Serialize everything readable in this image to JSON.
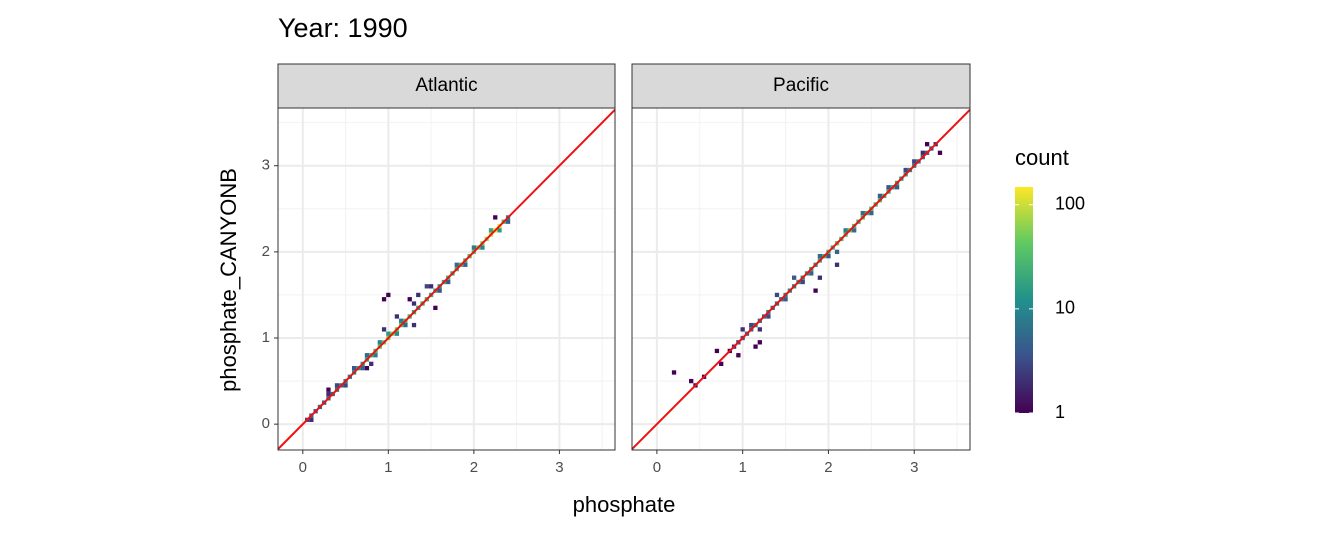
{
  "chart_data": {
    "type": "bin2d",
    "title": "Year: 1990",
    "x_label": "phosphate",
    "y_label": "phosphate_CANYONB",
    "xlim": [
      -0.29,
      3.65
    ],
    "ylim": [
      -0.3,
      3.67
    ],
    "xticks": [
      0,
      1,
      2,
      3
    ],
    "yticks": [
      0,
      1,
      2,
      3
    ],
    "minor_ticks": [
      0.5,
      1.5,
      2.5,
      3.5
    ],
    "grid": true,
    "binwidth": 0.05,
    "reference_line": {
      "slope": 1,
      "intercept": 0,
      "color": "#ee1111"
    },
    "colorbar": {
      "title": "count",
      "colormap": "viridis",
      "log": true,
      "clim": [
        1,
        148
      ],
      "ticks": [
        1,
        10,
        100
      ]
    },
    "facets": [
      {
        "name": "Atlantic",
        "cells": [
          [
            0.05,
            0.05,
            3
          ],
          [
            0.1,
            0.1,
            5
          ],
          [
            0.15,
            0.15,
            4
          ],
          [
            0.2,
            0.2,
            6
          ],
          [
            0.25,
            0.25,
            4
          ],
          [
            0.3,
            0.3,
            5
          ],
          [
            0.35,
            0.35,
            6
          ],
          [
            0.4,
            0.4,
            8
          ],
          [
            0.45,
            0.45,
            6
          ],
          [
            0.5,
            0.5,
            10
          ],
          [
            0.55,
            0.55,
            8
          ],
          [
            0.6,
            0.6,
            12
          ],
          [
            0.65,
            0.65,
            15
          ],
          [
            0.7,
            0.7,
            14
          ],
          [
            0.75,
            0.75,
            20
          ],
          [
            0.8,
            0.8,
            25
          ],
          [
            0.85,
            0.85,
            30
          ],
          [
            0.9,
            0.9,
            40
          ],
          [
            0.95,
            0.95,
            45
          ],
          [
            1.0,
            1.0,
            60
          ],
          [
            1.05,
            1.05,
            70
          ],
          [
            1.1,
            1.1,
            50
          ],
          [
            1.15,
            1.15,
            40
          ],
          [
            1.2,
            1.2,
            30
          ],
          [
            1.25,
            1.25,
            25
          ],
          [
            1.3,
            1.3,
            20
          ],
          [
            1.35,
            1.35,
            18
          ],
          [
            1.4,
            1.4,
            22
          ],
          [
            1.45,
            1.45,
            25
          ],
          [
            1.5,
            1.5,
            20
          ],
          [
            1.55,
            1.55,
            18
          ],
          [
            1.6,
            1.6,
            15
          ],
          [
            1.65,
            1.65,
            20
          ],
          [
            1.7,
            1.7,
            25
          ],
          [
            1.75,
            1.75,
            20
          ],
          [
            1.8,
            1.8,
            25
          ],
          [
            1.85,
            1.85,
            30
          ],
          [
            1.9,
            1.9,
            30
          ],
          [
            1.95,
            1.95,
            35
          ],
          [
            2.0,
            2.0,
            40
          ],
          [
            2.05,
            2.05,
            50
          ],
          [
            2.1,
            2.1,
            60
          ],
          [
            2.15,
            2.15,
            70
          ],
          [
            2.2,
            2.2,
            100
          ],
          [
            2.25,
            2.25,
            140
          ],
          [
            2.3,
            2.3,
            120
          ],
          [
            2.35,
            2.35,
            30
          ],
          [
            2.4,
            2.4,
            8
          ],
          [
            0.1,
            0.05,
            2
          ],
          [
            0.3,
            0.35,
            2
          ],
          [
            0.3,
            0.4,
            1
          ],
          [
            0.4,
            0.45,
            3
          ],
          [
            0.5,
            0.45,
            3
          ],
          [
            0.6,
            0.65,
            4
          ],
          [
            0.7,
            0.65,
            5
          ],
          [
            0.75,
            0.8,
            6
          ],
          [
            0.85,
            0.8,
            8
          ],
          [
            0.9,
            0.95,
            10
          ],
          [
            0.95,
            1.1,
            2
          ],
          [
            1.0,
            1.05,
            15
          ],
          [
            1.1,
            1.05,
            12
          ],
          [
            1.15,
            1.2,
            8
          ],
          [
            1.2,
            1.15,
            6
          ],
          [
            1.0,
            1.5,
            1
          ],
          [
            0.95,
            1.45,
            1
          ],
          [
            1.25,
            1.45,
            1
          ],
          [
            1.3,
            1.4,
            2
          ],
          [
            1.35,
            1.5,
            2
          ],
          [
            1.45,
            1.6,
            3
          ],
          [
            1.5,
            1.6,
            2
          ],
          [
            1.6,
            1.55,
            4
          ],
          [
            1.7,
            1.65,
            4
          ],
          [
            1.8,
            1.85,
            6
          ],
          [
            1.9,
            1.85,
            5
          ],
          [
            2.0,
            2.05,
            8
          ],
          [
            2.1,
            2.05,
            10
          ],
          [
            2.2,
            2.25,
            20
          ],
          [
            2.3,
            2.25,
            15
          ],
          [
            2.4,
            2.35,
            5
          ],
          [
            2.25,
            2.4,
            1
          ],
          [
            0.8,
            0.7,
            2
          ],
          [
            0.75,
            0.65,
            1
          ],
          [
            1.3,
            1.15,
            2
          ],
          [
            1.1,
            1.25,
            2
          ],
          [
            1.55,
            1.35,
            1
          ]
        ]
      },
      {
        "name": "Pacific",
        "cells": [
          [
            0.85,
            0.85,
            1
          ],
          [
            0.9,
            0.9,
            2
          ],
          [
            0.95,
            0.95,
            3
          ],
          [
            1.0,
            1.0,
            4
          ],
          [
            1.05,
            1.05,
            6
          ],
          [
            1.1,
            1.1,
            5
          ],
          [
            1.15,
            1.15,
            8
          ],
          [
            1.2,
            1.2,
            6
          ],
          [
            1.25,
            1.25,
            5
          ],
          [
            1.3,
            1.3,
            8
          ],
          [
            1.35,
            1.35,
            6
          ],
          [
            1.4,
            1.4,
            7
          ],
          [
            1.45,
            1.45,
            8
          ],
          [
            1.5,
            1.5,
            10
          ],
          [
            1.55,
            1.55,
            12
          ],
          [
            1.6,
            1.6,
            10
          ],
          [
            1.65,
            1.65,
            15
          ],
          [
            1.7,
            1.7,
            12
          ],
          [
            1.75,
            1.75,
            15
          ],
          [
            1.8,
            1.8,
            18
          ],
          [
            1.85,
            1.85,
            15
          ],
          [
            1.9,
            1.9,
            20
          ],
          [
            1.95,
            1.95,
            25
          ],
          [
            2.0,
            2.0,
            30
          ],
          [
            2.05,
            2.05,
            25
          ],
          [
            2.1,
            2.1,
            40
          ],
          [
            2.15,
            2.15,
            30
          ],
          [
            2.2,
            2.2,
            35
          ],
          [
            2.25,
            2.25,
            40
          ],
          [
            2.3,
            2.3,
            30
          ],
          [
            2.35,
            2.35,
            25
          ],
          [
            2.4,
            2.4,
            30
          ],
          [
            2.45,
            2.45,
            25
          ],
          [
            2.5,
            2.5,
            30
          ],
          [
            2.55,
            2.55,
            25
          ],
          [
            2.6,
            2.6,
            30
          ],
          [
            2.65,
            2.65,
            25
          ],
          [
            2.7,
            2.7,
            20
          ],
          [
            2.75,
            2.75,
            20
          ],
          [
            2.8,
            2.8,
            18
          ],
          [
            2.85,
            2.85,
            15
          ],
          [
            2.9,
            2.9,
            15
          ],
          [
            2.95,
            2.95,
            12
          ],
          [
            3.0,
            3.0,
            10
          ],
          [
            3.05,
            3.05,
            8
          ],
          [
            3.1,
            3.1,
            6
          ],
          [
            3.15,
            3.15,
            5
          ],
          [
            3.2,
            3.2,
            4
          ],
          [
            3.25,
            3.25,
            2
          ],
          [
            0.2,
            0.6,
            1
          ],
          [
            0.4,
            0.5,
            1
          ],
          [
            0.45,
            0.45,
            1
          ],
          [
            0.55,
            0.55,
            1
          ],
          [
            0.75,
            0.7,
            1
          ],
          [
            0.7,
            0.85,
            1
          ],
          [
            1.0,
            1.1,
            2
          ],
          [
            1.1,
            1.15,
            3
          ],
          [
            1.2,
            1.1,
            2
          ],
          [
            1.3,
            1.25,
            3
          ],
          [
            1.4,
            1.5,
            3
          ],
          [
            1.5,
            1.45,
            4
          ],
          [
            1.6,
            1.7,
            4
          ],
          [
            1.7,
            1.65,
            3
          ],
          [
            1.8,
            1.75,
            5
          ],
          [
            1.9,
            1.95,
            6
          ],
          [
            2.0,
            1.95,
            4
          ],
          [
            1.85,
            1.55,
            1
          ],
          [
            1.9,
            1.7,
            2
          ],
          [
            2.1,
            2.0,
            5
          ],
          [
            2.2,
            2.25,
            8
          ],
          [
            2.3,
            2.25,
            6
          ],
          [
            2.4,
            2.45,
            6
          ],
          [
            2.5,
            2.45,
            5
          ],
          [
            2.6,
            2.65,
            5
          ],
          [
            2.7,
            2.75,
            4
          ],
          [
            2.8,
            2.75,
            4
          ],
          [
            2.9,
            2.95,
            3
          ],
          [
            3.0,
            3.05,
            3
          ],
          [
            3.1,
            3.15,
            2
          ],
          [
            3.3,
            3.15,
            1
          ],
          [
            3.15,
            3.25,
            1
          ],
          [
            1.15,
            0.9,
            1
          ],
          [
            0.95,
            0.8,
            1
          ],
          [
            2.1,
            1.85,
            2
          ],
          [
            1.2,
            0.95,
            1
          ]
        ]
      }
    ]
  }
}
